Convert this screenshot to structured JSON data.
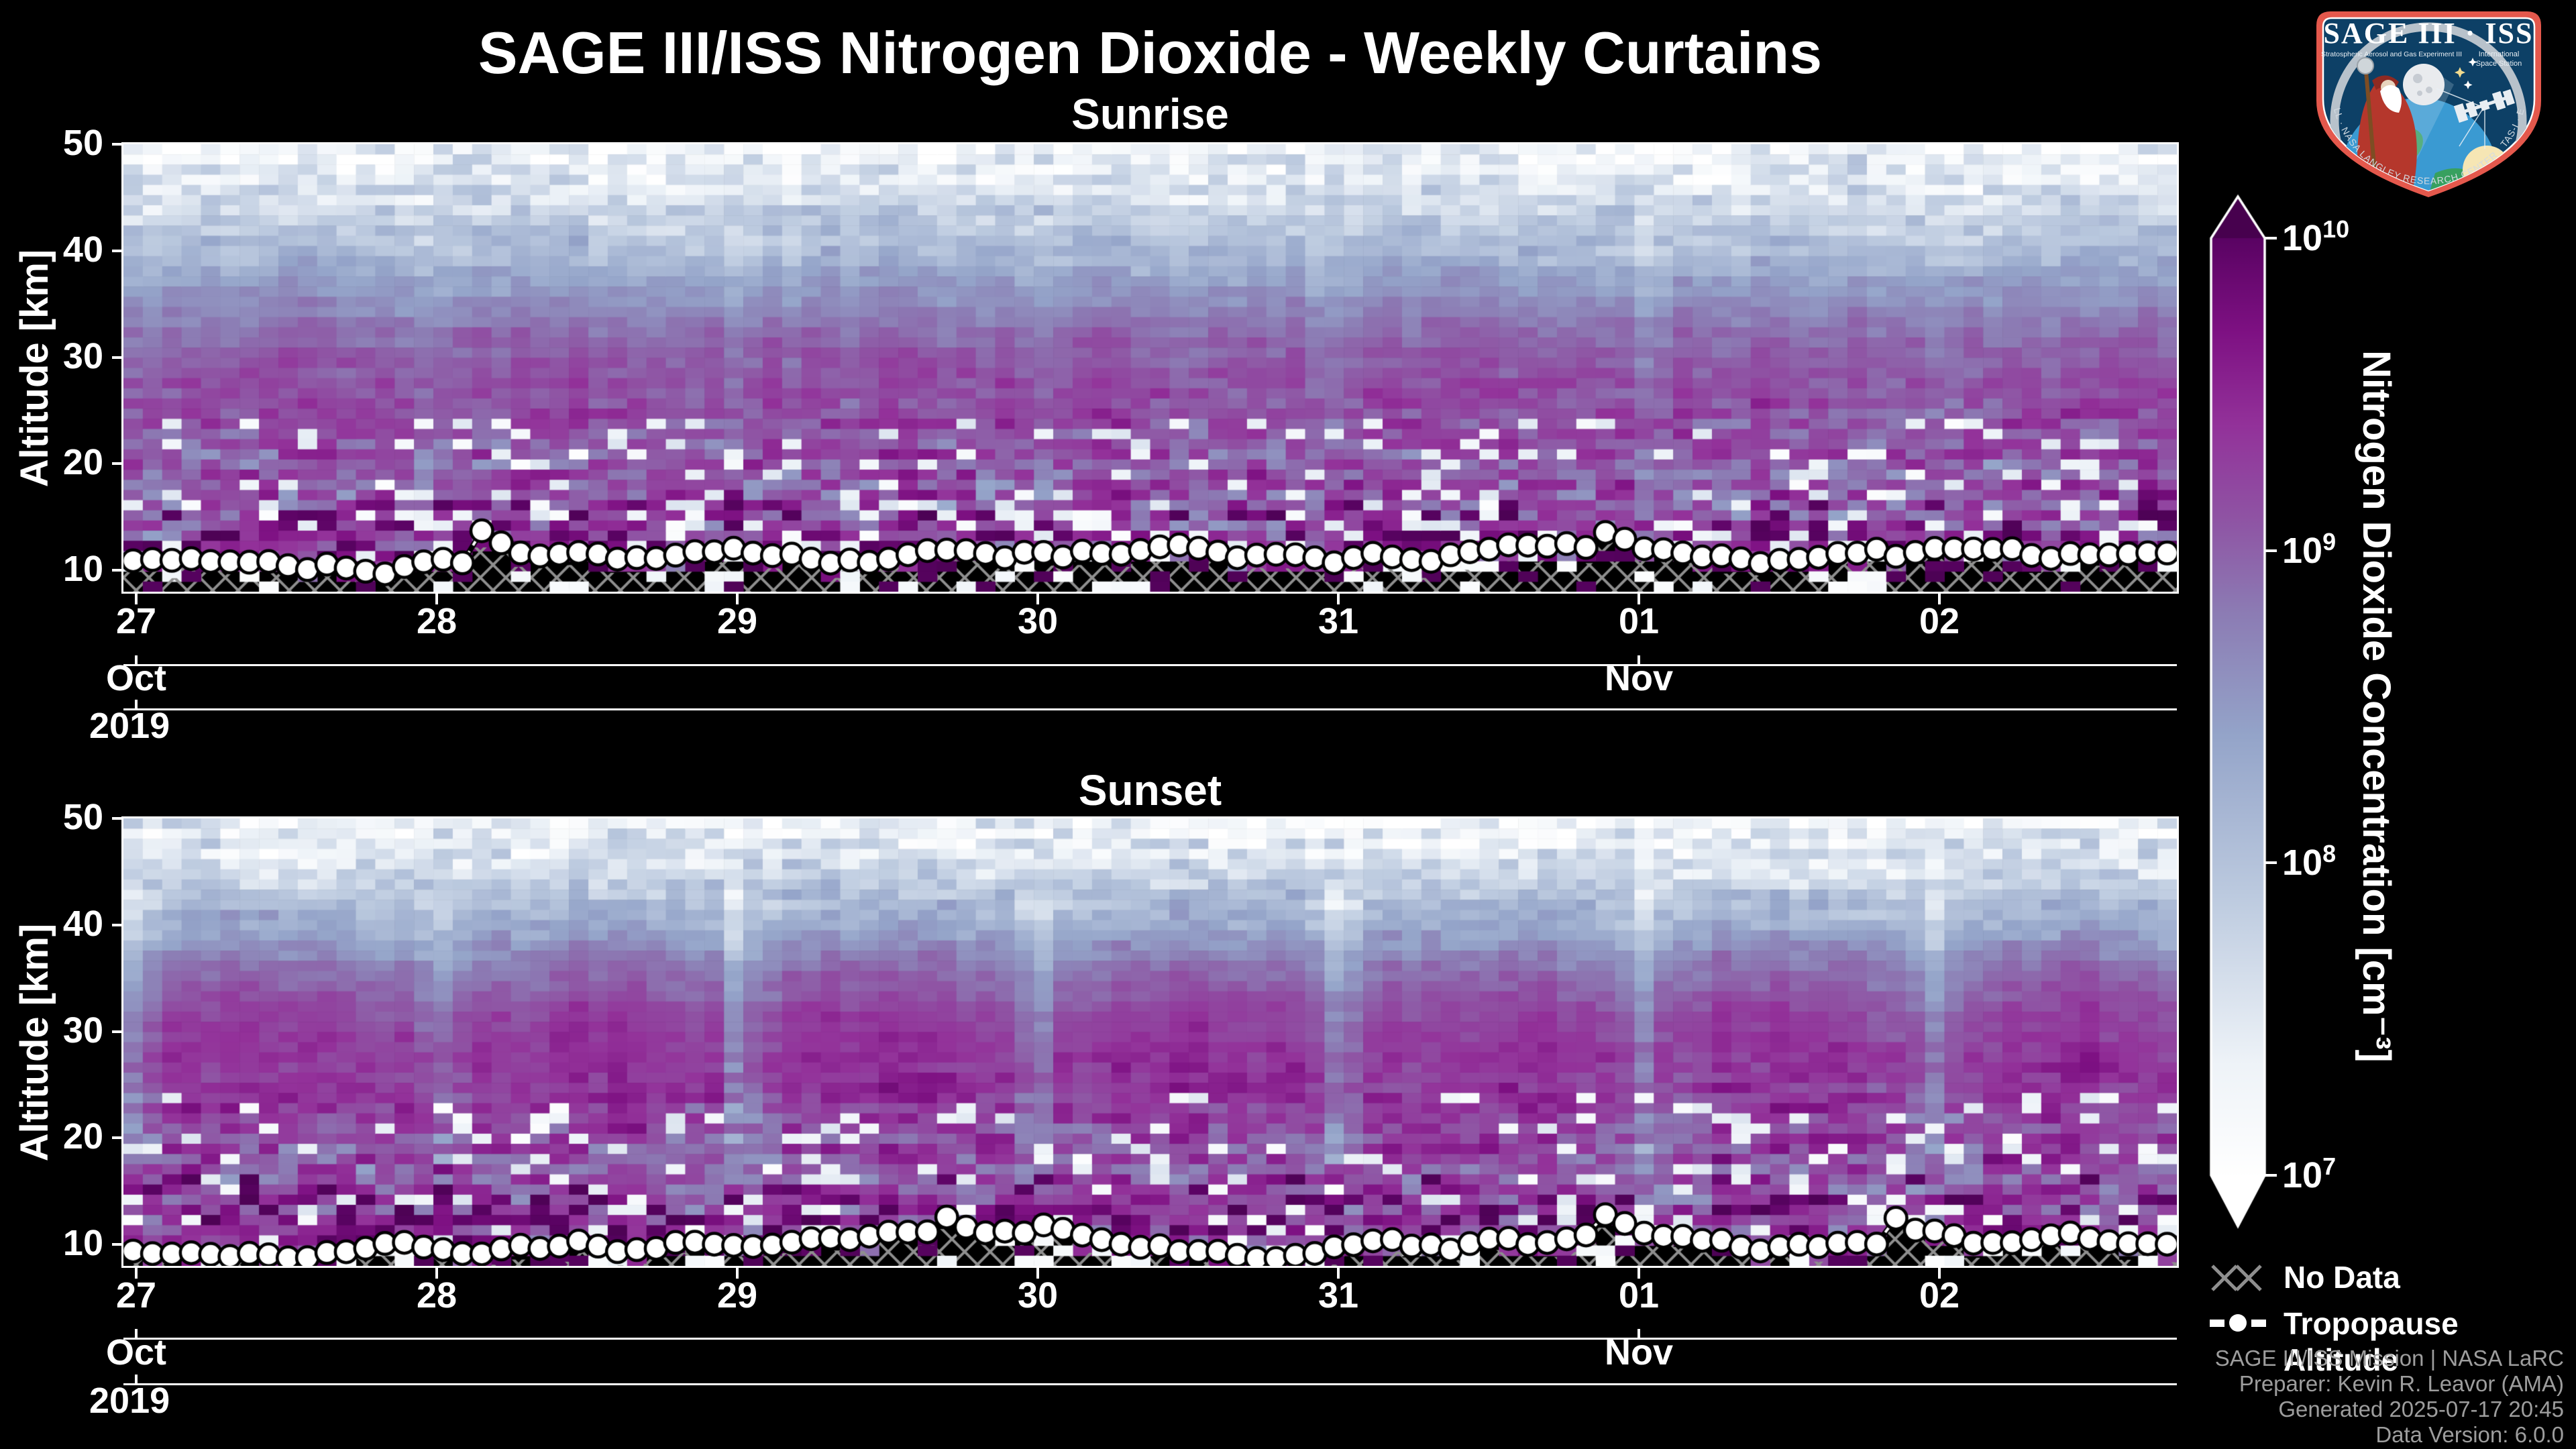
{
  "figure": {
    "title": "SAGE III/ISS Nitrogen Dioxide - Weekly Curtains",
    "background_color": "#000000",
    "text_color": "#ffffff",
    "footer": {
      "color": "#9d9d9d",
      "lines": [
        "SAGE III/ISS Mission | NASA LaRC",
        "Preparer: Kevin R. Leavor (AMA)",
        "Generated 2025-07-17 20:45",
        "Data Version: 6.0.0"
      ]
    },
    "legend": {
      "no_data_label": "No Data",
      "tropopause_label": "Tropopause Altitude",
      "hatch_color": "#8f8f8f"
    },
    "logo": {
      "title": "SAGE III · ISS",
      "left_caption": "Stratospheric Aerosol and Gas Experiment III",
      "right_caption_line1": "International",
      "right_caption_line2": "Space Station",
      "ring_text": "BALL · NASA LANGLEY RESEARCH CENTER · TAS-I · ESA"
    }
  },
  "chart_data": {
    "type": "heatmap",
    "time_range": {
      "start": "2019-10-27",
      "end": "2019-11-02",
      "year_label": "2019"
    },
    "x_day_tick_labels": [
      "27",
      "28",
      "29",
      "30",
      "31",
      "01",
      "02"
    ],
    "x_month_ticks": [
      {
        "label": "Oct",
        "day_index": 0
      },
      {
        "label": "Nov",
        "day_index": 5
      }
    ],
    "x_year_ticks": [
      {
        "label": "2019",
        "day_index": 0
      }
    ],
    "y_axis": {
      "label": "Altitude [km]",
      "ticks": [
        10,
        20,
        30,
        40,
        50
      ],
      "range_km": [
        8,
        50
      ]
    },
    "profiles_per_day": 15,
    "panels": [
      {
        "title": "Sunrise",
        "mean_log10_profile": [
          [
            50,
            7.25
          ],
          [
            47,
            7.45
          ],
          [
            44,
            7.72
          ],
          [
            40,
            8.12
          ],
          [
            36,
            8.55
          ],
          [
            32,
            8.92
          ],
          [
            28,
            9.12
          ],
          [
            24,
            9.15
          ],
          [
            20,
            9.0
          ],
          [
            16,
            9.15
          ],
          [
            12,
            9.45
          ],
          [
            8,
            9.6
          ]
        ],
        "sigma_log10_profile": [
          [
            50,
            0.5
          ],
          [
            44,
            0.32
          ],
          [
            36,
            0.15
          ],
          [
            30,
            0.13
          ],
          [
            24,
            0.3
          ],
          [
            20,
            0.45
          ],
          [
            16,
            0.6
          ],
          [
            8,
            0.7
          ]
        ],
        "speckle": {
          "white_fraction_below_24km": 0.13,
          "dark_fraction_below_17km": 0.13
        },
        "diurnal_modulation": {
          "edge_lighten_log10": 0.2,
          "center_boost_log10": 0.05
        },
        "tropopause_altitude_km": {
          "mean": 11.3,
          "min": 9.5,
          "max": 16.2
        }
      },
      {
        "title": "Sunset",
        "mean_log10_profile": [
          [
            50,
            7.25
          ],
          [
            47,
            7.5
          ],
          [
            44,
            7.8
          ],
          [
            40,
            8.25
          ],
          [
            36,
            8.78
          ],
          [
            32,
            9.12
          ],
          [
            28,
            9.3
          ],
          [
            24,
            9.28
          ],
          [
            20,
            9.08
          ],
          [
            16,
            9.15
          ],
          [
            12,
            9.4
          ],
          [
            8,
            9.5
          ]
        ],
        "sigma_log10_profile": [
          [
            50,
            0.5
          ],
          [
            44,
            0.3
          ],
          [
            36,
            0.13
          ],
          [
            30,
            0.12
          ],
          [
            24,
            0.25
          ],
          [
            20,
            0.4
          ],
          [
            16,
            0.55
          ],
          [
            8,
            0.65
          ]
        ],
        "speckle": {
          "white_fraction_below_24km": 0.12,
          "dark_fraction_below_17km": 0.12
        },
        "diurnal_modulation": {
          "edge_lighten_log10": 0.5,
          "center_boost_log10": 0.15
        },
        "tropopause_altitude_km": {
          "mean": 9.8,
          "min": 8.7,
          "max": 12.8
        }
      }
    ],
    "no_data_style": "black region with gray X hatching below lowest retrieved altitude",
    "colorbar": {
      "label": "Nitrogen Dioxide Concentration [cm⁻³]",
      "scale": "log10",
      "tick_exponents": [
        10,
        9,
        8,
        7
      ],
      "range_exponents": [
        7,
        10
      ],
      "extend": "both",
      "over_color": "#47014e",
      "colormap_stops": [
        {
          "t": 0.0,
          "color": "#ffffff"
        },
        {
          "t": 0.12,
          "color": "#eef3f8"
        },
        {
          "t": 0.3,
          "color": "#bccadf"
        },
        {
          "t": 0.47,
          "color": "#94a4c9"
        },
        {
          "t": 0.6,
          "color": "#8c7cb4"
        },
        {
          "t": 0.7,
          "color": "#8f54a4"
        },
        {
          "t": 0.8,
          "color": "#93329a"
        },
        {
          "t": 0.9,
          "color": "#7e1183"
        },
        {
          "t": 1.0,
          "color": "#5a0363"
        }
      ]
    }
  }
}
